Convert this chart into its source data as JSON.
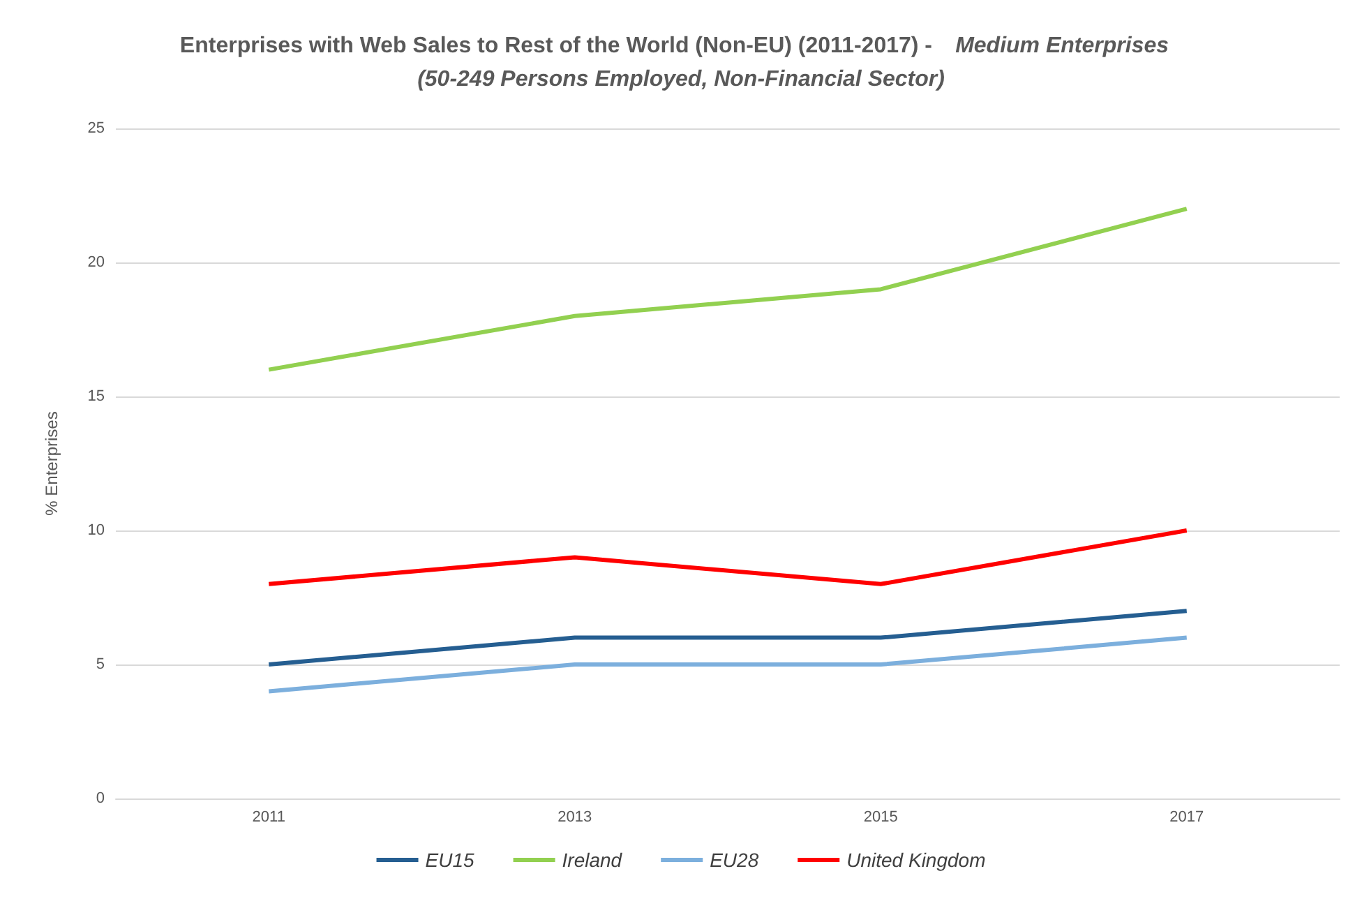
{
  "chart_data": {
    "type": "line",
    "title": "Enterprises with Web Sales to Rest of the World (Non-EU) (2011-2017) -",
    "subtitle": "Medium Enterprises (50-249 Persons Employed, Non-Financial Sector)",
    "ylabel": "% Enterprises",
    "categories": [
      "2011",
      "2013",
      "2015",
      "2017"
    ],
    "series": [
      {
        "name": "EU15",
        "color": "#255e91",
        "values": [
          5,
          6,
          6,
          7
        ]
      },
      {
        "name": "Ireland",
        "color": "#92d050",
        "values": [
          16,
          18,
          19,
          22
        ]
      },
      {
        "name": "EU28",
        "color": "#7cafdd",
        "values": [
          4,
          5,
          5,
          6
        ]
      },
      {
        "name": "United Kingdom",
        "color": "#ff0000",
        "values": [
          8,
          9,
          8,
          10
        ]
      }
    ],
    "ylim": [
      0,
      25
    ],
    "yticks": [
      0,
      5,
      10,
      15,
      20,
      25
    ],
    "grid": "y",
    "legend": "bottom",
    "marker": "none",
    "line_style": "solid"
  }
}
